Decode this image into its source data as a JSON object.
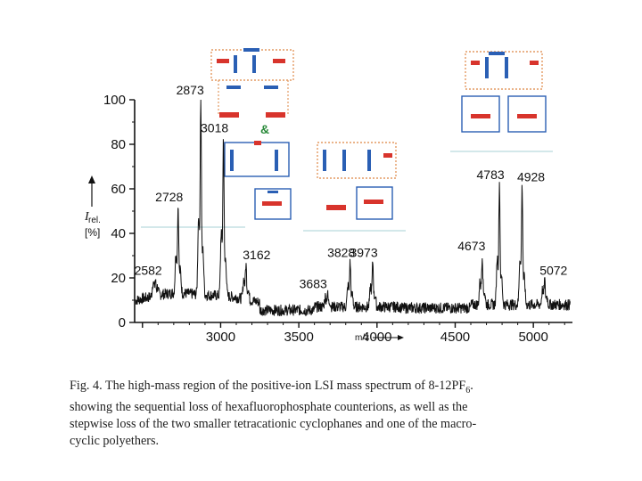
{
  "chart_data": {
    "type": "line",
    "ylabel_main": "I",
    "ylabel_sub": "rel.",
    "ylabel_unit": "[%]",
    "xlabel": "m/z",
    "xlim": [
      2450,
      5250
    ],
    "ylim": [
      0,
      100
    ],
    "xticks": [
      "3000",
      "3500",
      "4000",
      "4500",
      "5000"
    ],
    "yticks": [
      "0",
      "20",
      "40",
      "60",
      "80",
      "100"
    ],
    "peaks": [
      {
        "label": "2582",
        "x": 2582,
        "y": 19
      },
      {
        "label": "2728",
        "x": 2728,
        "y": 52
      },
      {
        "label": "2873",
        "x": 2873,
        "y": 100
      },
      {
        "label": "3018",
        "x": 3018,
        "y": 83
      },
      {
        "label": "3162",
        "x": 3162,
        "y": 26
      },
      {
        "label": "3683",
        "x": 3683,
        "y": 13
      },
      {
        "label": "3828",
        "x": 3828,
        "y": 27
      },
      {
        "label": "3973",
        "x": 3973,
        "y": 27
      },
      {
        "label": "4673",
        "x": 4673,
        "y": 30
      },
      {
        "label": "4783",
        "x": 4783,
        "y": 62
      },
      {
        "label": "4928",
        "x": 4928,
        "y": 61
      },
      {
        "label": "5072",
        "x": 5072,
        "y": 19
      }
    ],
    "annotations": [
      "&"
    ],
    "colors": {
      "trace": "#111111",
      "red_unit": "#d8342c",
      "blue_unit": "#2a5fb4",
      "orange_ring": "#e39a62",
      "guide": "#b9d9de"
    }
  },
  "caption": {
    "line1": "Fig. 4. The high-mass region of the positive-ion LSI mass spectrum of 8-12PF",
    "line1_sub": "6",
    "line1_end": ".",
    "line2": "showing the sequential loss of hexafluorophosphate counterions, as well as the",
    "line3": "stepwise loss of the two smaller tetracationic cyclophanes and one of the macro-",
    "line4": "cyclic polyethers."
  }
}
